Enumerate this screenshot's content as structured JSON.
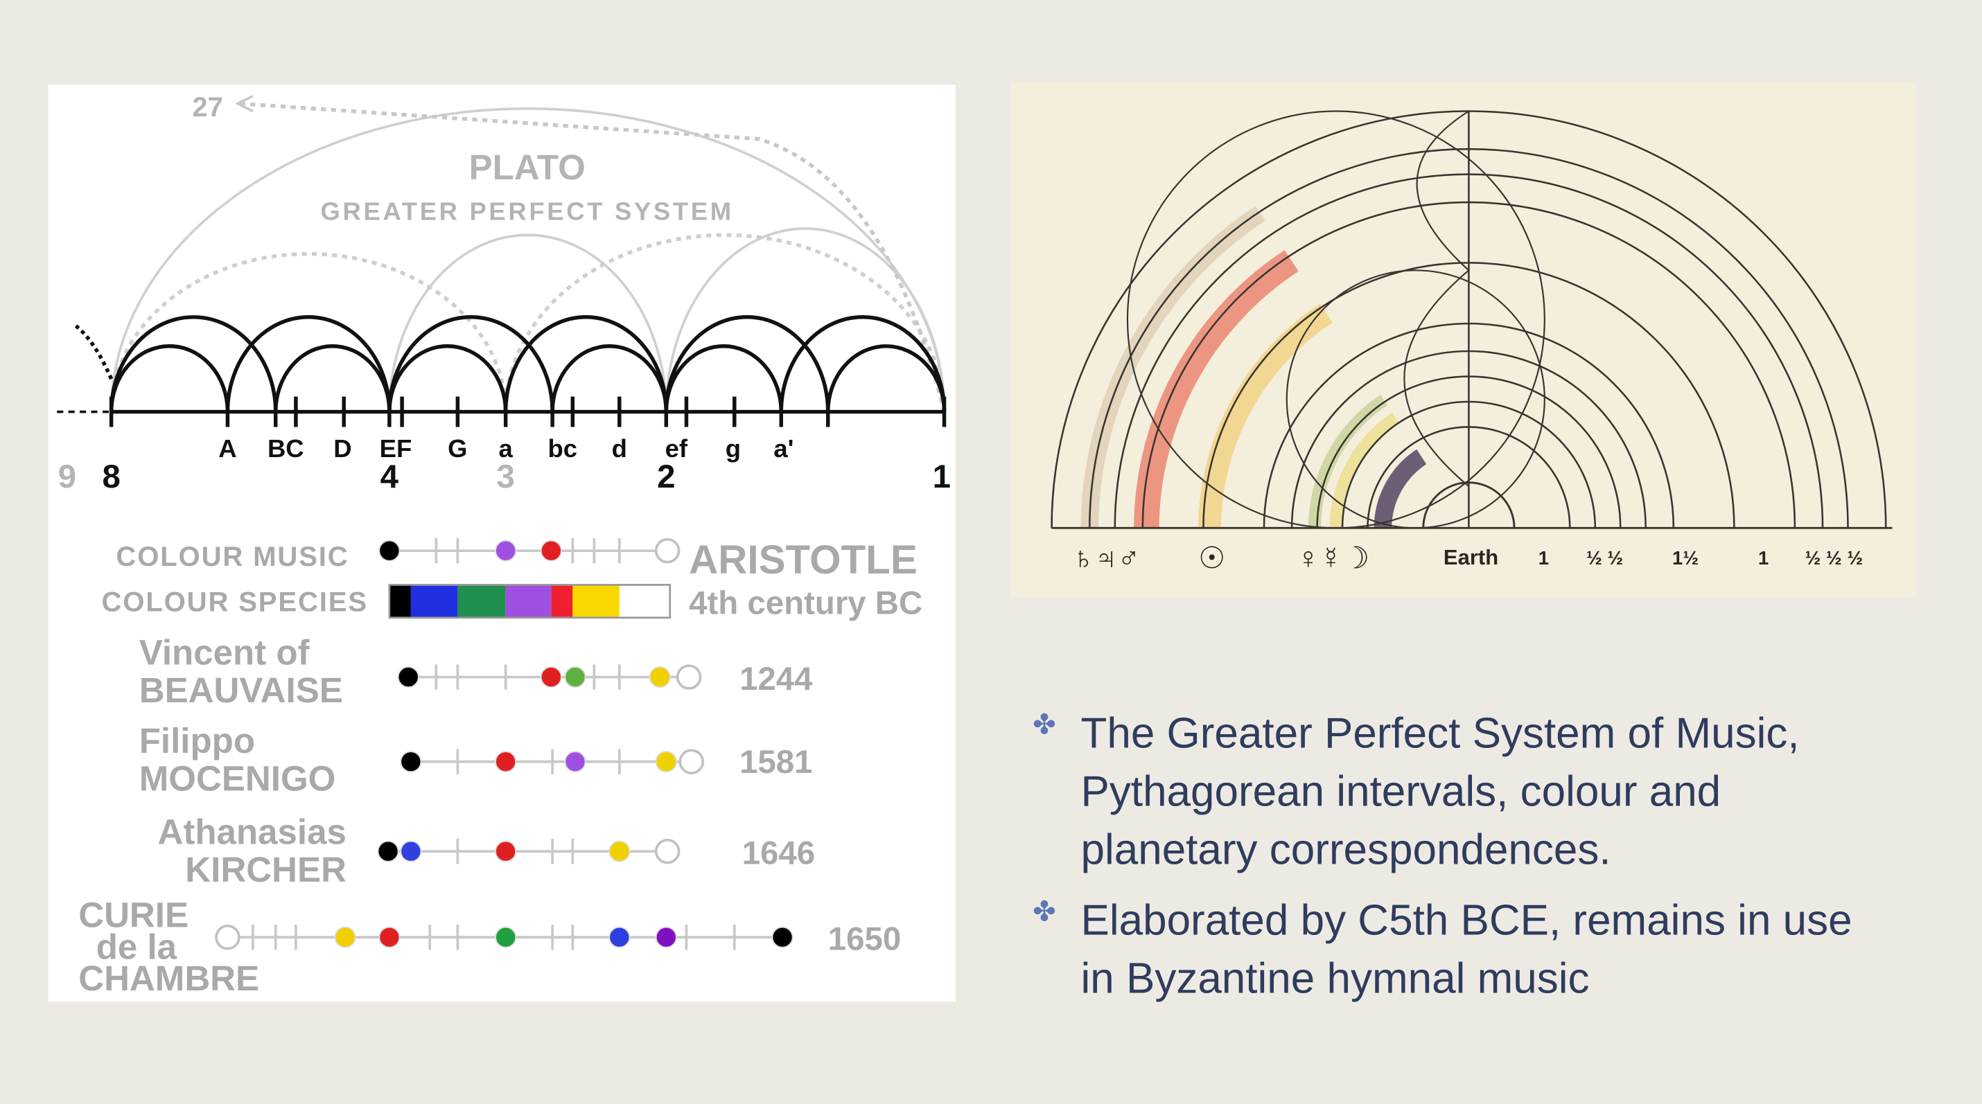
{
  "left_diagram": {
    "top_label": "27",
    "title": "PLATO",
    "subtitle": "GREATER PERFECT SYSTEM",
    "notes": [
      "A",
      "BC",
      "D",
      "EF",
      "G",
      "a",
      "bc",
      "d",
      "ef",
      "g",
      "a'"
    ],
    "ratios": [
      "9",
      "8",
      "4",
      "3",
      "2",
      "1"
    ],
    "rows": [
      {
        "lines": [
          "COLOUR MUSIC"
        ],
        "right_text": "ARISTOTLE"
      },
      {
        "lines": [
          "COLOUR SPECIES"
        ],
        "right_text": "4th century BC"
      },
      {
        "lines": [
          "Vincent of",
          "BEAUVAISE"
        ],
        "right_text": "1244"
      },
      {
        "lines": [
          "Filippo",
          "MOCENIGO"
        ],
        "right_text": "1581"
      },
      {
        "lines": [
          "Athanasias",
          "KIRCHER"
        ],
        "right_text": "1646"
      },
      {
        "lines": [
          "CURIE",
          "de la",
          "CHAMBRE"
        ],
        "right_text": "1650"
      }
    ]
  },
  "right_diagram": {
    "symbols": [
      "♄♃♂",
      "☉",
      "♀☿☽"
    ],
    "labels": [
      "Earth",
      "1",
      "½ ½",
      "1½",
      "1",
      "½ ½ ½"
    ]
  },
  "bullets": [
    [
      "The Greater Perfect System of Music,",
      "Pythagorean intervals, colour and",
      "planetary correspondences."
    ],
    [
      "Elaborated by C5th BCE, remains in use",
      "in Byzantine hymnal music"
    ]
  ]
}
